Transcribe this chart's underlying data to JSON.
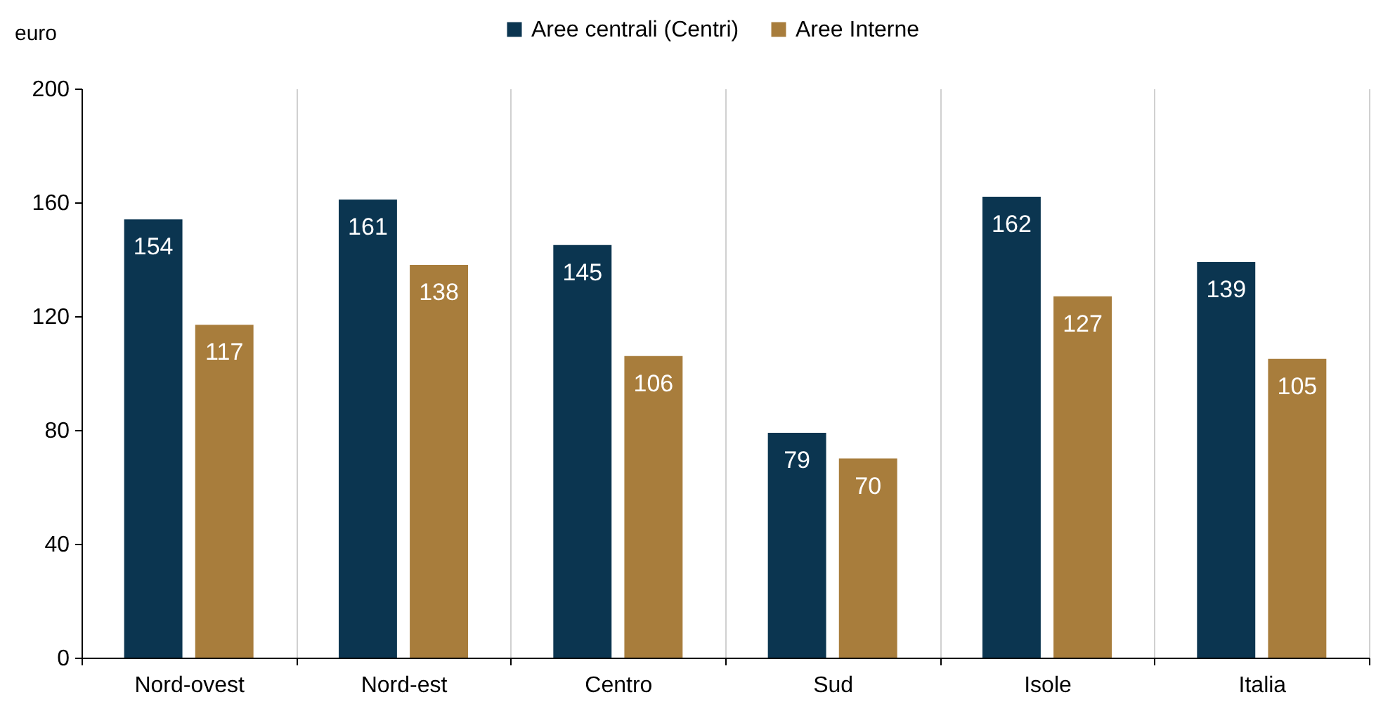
{
  "chart_data": {
    "type": "bar",
    "ylabel": "euro",
    "categories": [
      "Nord-ovest",
      "Nord-est",
      "Centro",
      "Sud",
      "Isole",
      "Italia"
    ],
    "series": [
      {
        "name": "Aree centrali (Centri)",
        "color": "#0b3550",
        "values": [
          154,
          161,
          145,
          79,
          162,
          139
        ]
      },
      {
        "name": "Aree Interne",
        "color": "#a87d3c",
        "values": [
          117,
          138,
          106,
          70,
          127,
          105
        ]
      }
    ],
    "ylim": [
      0,
      200
    ],
    "yticks": [
      0,
      40,
      80,
      120,
      160,
      200
    ],
    "grid": "x",
    "legend": "top",
    "data_labels": true
  }
}
